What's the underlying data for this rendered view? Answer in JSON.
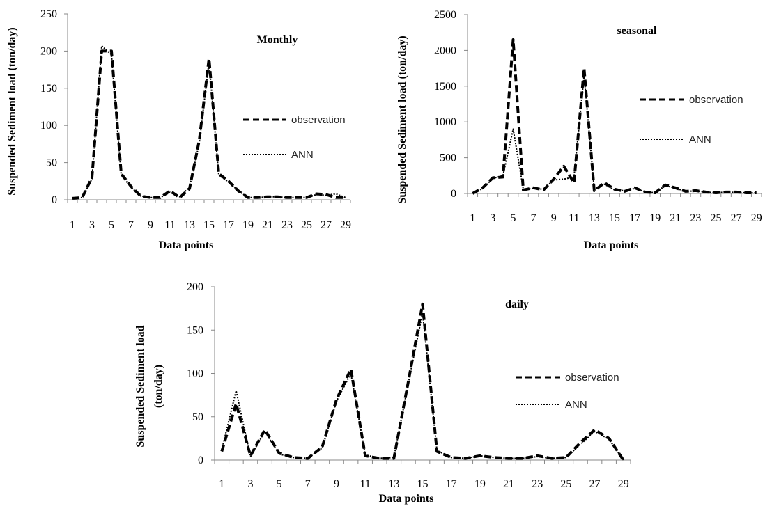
{
  "chart_data": [
    {
      "type": "line",
      "title": "Monthly",
      "xlabel": "Data points",
      "ylabel": "Suspended Sediment load (ton/day)",
      "ylim": [
        0,
        250
      ],
      "yticks": [
        0,
        50,
        100,
        150,
        200,
        250
      ],
      "x": [
        1,
        2,
        3,
        4,
        5,
        6,
        7,
        8,
        9,
        10,
        11,
        12,
        13,
        14,
        15,
        16,
        17,
        18,
        19,
        20,
        21,
        22,
        23,
        24,
        25,
        26,
        27,
        28,
        29
      ],
      "x_tick_labels": [
        "1",
        "3",
        "5",
        "7",
        "9",
        "11",
        "13",
        "15",
        "17",
        "19",
        "21",
        "23",
        "25",
        "27",
        "29"
      ],
      "series": [
        {
          "name": "observation",
          "style": "dashed",
          "values": [
            2,
            3,
            30,
            200,
            200,
            35,
            18,
            5,
            3,
            3,
            12,
            3,
            15,
            80,
            190,
            35,
            25,
            12,
            3,
            3,
            4,
            4,
            3,
            3,
            3,
            8,
            7,
            3,
            3
          ]
        },
        {
          "name": "ANN",
          "style": "dotted",
          "values": [
            2,
            3,
            28,
            207,
            195,
            33,
            17,
            5,
            3,
            3,
            10,
            4,
            17,
            76,
            186,
            33,
            24,
            12,
            3,
            3,
            4,
            4,
            3,
            3,
            3,
            7,
            6,
            8,
            3
          ]
        }
      ],
      "legend": "right",
      "grid": false
    },
    {
      "type": "line",
      "title": "seasonal",
      "xlabel": "Data points",
      "ylabel": "Suspended Sediment load (ton/day)",
      "ylim": [
        0,
        2500
      ],
      "yticks": [
        0,
        500,
        1000,
        1500,
        2000,
        2500
      ],
      "x": [
        1,
        2,
        3,
        4,
        5,
        6,
        7,
        8,
        9,
        10,
        11,
        12,
        13,
        14,
        15,
        16,
        17,
        18,
        19,
        20,
        21,
        22,
        23,
        24,
        25,
        26,
        27,
        28,
        29
      ],
      "x_tick_labels": [
        "1",
        "3",
        "5",
        "7",
        "9",
        "11",
        "13",
        "15",
        "17",
        "19",
        "21",
        "23",
        "25",
        "27",
        "29"
      ],
      "series": [
        {
          "name": "observation",
          "style": "dashed",
          "values": [
            0,
            80,
            220,
            230,
            2150,
            50,
            80,
            50,
            200,
            380,
            150,
            1750,
            40,
            150,
            60,
            30,
            80,
            20,
            10,
            120,
            80,
            30,
            40,
            20,
            10,
            20,
            20,
            10,
            10
          ]
        },
        {
          "name": "ANN",
          "style": "dotted",
          "values": [
            0,
            70,
            210,
            250,
            900,
            60,
            70,
            60,
            190,
            200,
            230,
            1650,
            60,
            130,
            50,
            40,
            70,
            25,
            10,
            110,
            75,
            30,
            35,
            20,
            10,
            20,
            15,
            10,
            10
          ]
        }
      ],
      "legend": "right",
      "grid": false
    },
    {
      "type": "line",
      "title": "daily",
      "xlabel": "Data points",
      "ylabel": "Suspended Sediment load (ton/day)",
      "ylabel_lines": [
        "Suspended Sediment load",
        "(ton/day)"
      ],
      "ylim": [
        0,
        200
      ],
      "yticks": [
        0,
        50,
        100,
        150,
        200
      ],
      "x": [
        1,
        2,
        3,
        4,
        5,
        6,
        7,
        8,
        9,
        10,
        11,
        12,
        13,
        14,
        15,
        16,
        17,
        18,
        19,
        20,
        21,
        22,
        23,
        24,
        25,
        26,
        27,
        28,
        29
      ],
      "x_tick_labels": [
        "1",
        "3",
        "5",
        "7",
        "9",
        "11",
        "13",
        "15",
        "17",
        "19",
        "21",
        "23",
        "25",
        "27",
        "29"
      ],
      "series": [
        {
          "name": "observation",
          "style": "dashed",
          "values": [
            10,
            65,
            5,
            35,
            8,
            3,
            2,
            15,
            70,
            105,
            5,
            2,
            2,
            90,
            180,
            10,
            3,
            2,
            5,
            3,
            2,
            2,
            5,
            2,
            3,
            20,
            35,
            25,
            0
          ]
        },
        {
          "name": "ANN",
          "style": "dotted",
          "values": [
            12,
            80,
            4,
            33,
            7,
            3,
            2,
            14,
            68,
            100,
            6,
            2,
            3,
            88,
            170,
            11,
            3,
            2,
            5,
            3,
            2,
            2,
            4,
            2,
            3,
            18,
            33,
            24,
            0
          ]
        }
      ],
      "legend": "right",
      "grid": false
    }
  ]
}
